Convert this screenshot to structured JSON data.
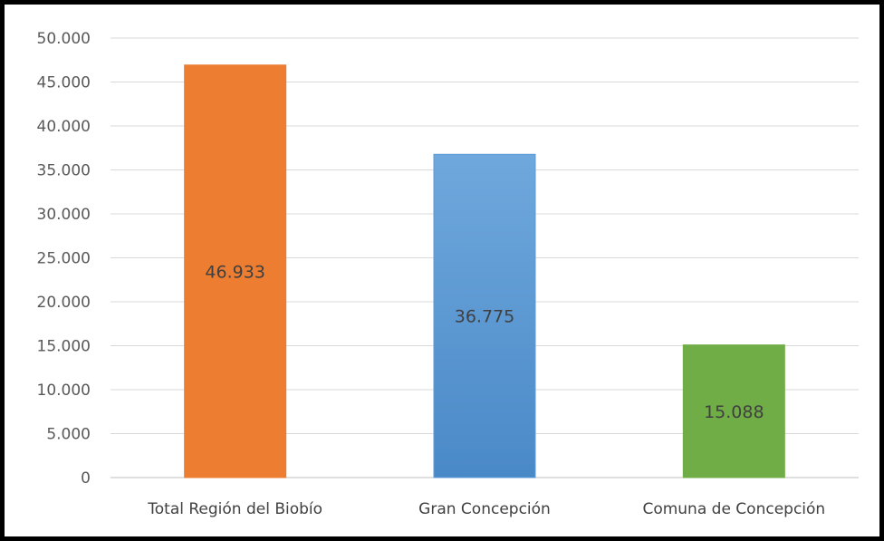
{
  "chart_data": {
    "type": "bar",
    "title": "",
    "xlabel": "",
    "ylabel": "",
    "categories": [
      "Total Región del Biobío",
      "Gran Concepción",
      "Comuna de Concepción"
    ],
    "values": [
      46933,
      36775,
      15088
    ],
    "data_labels": [
      "46.933",
      "36.775",
      "15.088"
    ],
    "ylim": [
      0,
      50000
    ],
    "yticks": [
      0,
      5000,
      10000,
      15000,
      20000,
      25000,
      30000,
      35000,
      40000,
      45000,
      50000
    ],
    "ytick_labels": [
      "0",
      "5.000",
      "10.000",
      "15.000",
      "20.000",
      "25.000",
      "30.000",
      "35.000",
      "40.000",
      "45.000",
      "50.000"
    ],
    "bar_colors": [
      "#ED7D31",
      "#5B9BD5",
      "#70AD47"
    ],
    "grid": true,
    "legend": "none"
  }
}
